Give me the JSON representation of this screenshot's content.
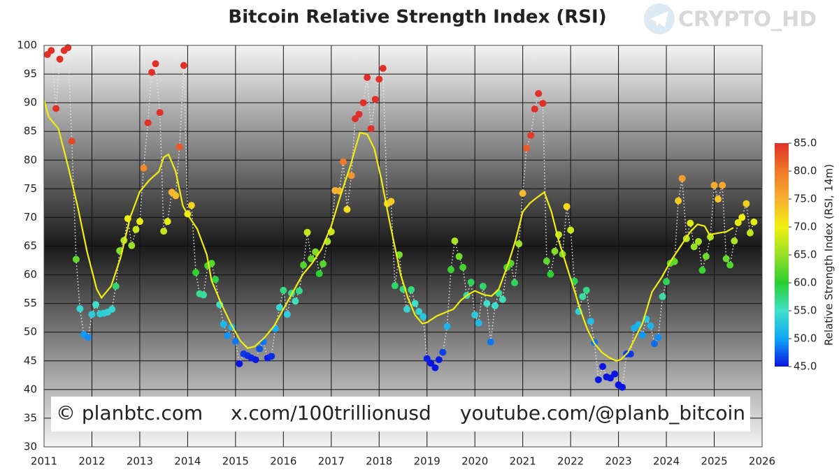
{
  "chart_data": {
    "type": "scatter",
    "title": "Bitcoin Relative Strength Index (RSI)",
    "watermark": "CRYPTO_HD",
    "footer": [
      "© planbtc.com",
      "x.com/100trillionusd",
      "youtube.com/@planb_bitcoin"
    ],
    "xlim": [
      2011,
      2026
    ],
    "xticks": [
      2011,
      2012,
      2013,
      2014,
      2015,
      2016,
      2017,
      2018,
      2019,
      2020,
      2021,
      2022,
      2023,
      2024,
      2025,
      2026
    ],
    "ylim": [
      30,
      100
    ],
    "yticks": [
      30,
      35,
      40,
      45,
      50,
      55,
      60,
      65,
      70,
      75,
      80,
      85,
      90,
      95,
      100
    ],
    "grid": true,
    "colorbar": {
      "label": "Relative Strength Index (RSI, 14m)",
      "lim": [
        45,
        85
      ],
      "ticks": [
        {
          "value": 45,
          "label": "45.0"
        },
        {
          "value": 50,
          "label": "50.0"
        },
        {
          "value": 55,
          "label": "55.0"
        },
        {
          "value": 60,
          "label": "60.0"
        },
        {
          "value": 65,
          "label": "65.0"
        },
        {
          "value": 70,
          "label": "70.0"
        },
        {
          "value": 75,
          "label": "75.0"
        },
        {
          "value": 80,
          "label": "80.0"
        },
        {
          "value": 85,
          "label": "85.0"
        }
      ],
      "colors": [
        "#0a14e0",
        "#10a8f8",
        "#40e0c8",
        "#28d030",
        "#98e028",
        "#f0f010",
        "#f8b030",
        "#f07828",
        "#e03028"
      ]
    },
    "series": [
      {
        "kind": "scatter",
        "connector_color": "#e8e8e8",
        "x": [
          2011.07,
          2011.15,
          2011.25,
          2011.33,
          2011.42,
          2011.5,
          2011.58,
          2011.67,
          2011.75,
          2011.83,
          2011.92,
          2012,
          2012.08,
          2012.17,
          2012.25,
          2012.33,
          2012.42,
          2012.5,
          2012.58,
          2012.67,
          2012.75,
          2012.83,
          2012.92,
          2013,
          2013.08,
          2013.17,
          2013.25,
          2013.33,
          2013.42,
          2013.5,
          2013.58,
          2013.67,
          2013.75,
          2013.83,
          2013.92,
          2014,
          2014.08,
          2014.17,
          2014.25,
          2014.33,
          2014.42,
          2014.5,
          2014.58,
          2014.67,
          2014.75,
          2014.83,
          2014.92,
          2015,
          2015.08,
          2015.17,
          2015.25,
          2015.33,
          2015.42,
          2015.5,
          2015.58,
          2015.67,
          2015.75,
          2015.83,
          2015.92,
          2016,
          2016.08,
          2016.17,
          2016.25,
          2016.33,
          2016.42,
          2016.5,
          2016.58,
          2016.67,
          2016.75,
          2016.83,
          2016.92,
          2017,
          2017.08,
          2017.17,
          2017.25,
          2017.33,
          2017.42,
          2017.5,
          2017.58,
          2017.67,
          2017.75,
          2017.83,
          2017.92,
          2018,
          2018.08,
          2018.17,
          2018.25,
          2018.33,
          2018.42,
          2018.5,
          2018.58,
          2018.67,
          2018.75,
          2018.83,
          2018.92,
          2019,
          2019.08,
          2019.17,
          2019.25,
          2019.33,
          2019.42,
          2019.5,
          2019.58,
          2019.67,
          2019.75,
          2019.83,
          2019.92,
          2020,
          2020.08,
          2020.17,
          2020.25,
          2020.33,
          2020.42,
          2020.5,
          2020.58,
          2020.67,
          2020.75,
          2020.83,
          2020.92,
          2021,
          2021.08,
          2021.17,
          2021.25,
          2021.33,
          2021.42,
          2021.5,
          2021.58,
          2021.67,
          2021.75,
          2021.83,
          2021.92,
          2022,
          2022.08,
          2022.17,
          2022.25,
          2022.33,
          2022.42,
          2022.5,
          2022.58,
          2022.67,
          2022.75,
          2022.83,
          2022.92,
          2023,
          2023.08,
          2023.17,
          2023.25,
          2023.33,
          2023.42,
          2023.5,
          2023.58,
          2023.67,
          2023.75,
          2023.83,
          2023.92,
          2024,
          2024.08,
          2024.17,
          2024.25,
          2024.33,
          2024.42,
          2024.5,
          2024.58,
          2024.67,
          2024.75,
          2024.83,
          2024.92,
          2025,
          2025.08,
          2025.17,
          2025.25,
          2025.33,
          2025.42,
          2025.5,
          2025.58,
          2025.67,
          2025.75,
          2025.83
        ],
        "values": [
          98.4,
          99.1,
          89.0,
          97.6,
          99.1,
          99.6,
          83.3,
          62.7,
          54.1,
          49.6,
          49.1,
          53.1,
          54.8,
          53.2,
          53.3,
          53.5,
          54.0,
          58.0,
          64.2,
          66.0,
          69.8,
          65.1,
          67.9,
          69.3,
          78.6,
          86.5,
          95.3,
          96.8,
          88.3,
          67.6,
          69.3,
          74.4,
          73.8,
          82.3,
          96.5,
          70.6,
          72.1,
          60.4,
          56.7,
          56.5,
          61.6,
          62.0,
          59.2,
          54.8,
          51.4,
          49.4,
          50.9,
          48.4,
          44.5,
          46.2,
          45.9,
          45.5,
          45.2,
          47.1,
          48.3,
          45.5,
          45.8,
          50.6,
          54.3,
          57.3,
          53.1,
          56.8,
          55.4,
          57.2,
          61.7,
          67.4,
          62.8,
          64.0,
          60.2,
          61.9,
          65.8,
          67.5,
          74.7,
          74.6,
          79.7,
          71.4,
          77.3,
          87.2,
          88.0,
          90.0,
          94.4,
          85.5,
          90.6,
          94.1,
          96.0,
          72.4,
          72.8,
          58.1,
          63.5,
          57.5,
          54.0,
          57.4,
          55.0,
          53.6,
          52.7,
          45.4,
          44.6,
          43.8,
          45.2,
          46.5,
          51.0,
          60.9,
          65.9,
          63.2,
          61.3,
          56.4,
          58.7,
          53.0,
          51.6,
          58.0,
          55.0,
          48.3,
          54.6,
          56.8,
          55.7,
          61.3,
          62.0,
          58.6,
          65.4,
          74.2,
          82.1,
          84.3,
          88.9,
          91.6,
          89.9,
          62.4,
          60.1,
          64.1,
          67.0,
          63.6,
          71.9,
          67.8,
          58.9,
          53.6,
          56.2,
          57.3,
          51.9,
          48.2,
          41.7,
          44.0,
          42.2,
          42.0,
          42.7,
          40.8,
          40.4,
          46.2,
          46.2,
          50.7,
          51.3,
          49.5,
          52.3,
          51.1,
          48.0,
          49.1,
          56.2,
          58.8,
          62.0,
          62.3,
          72.9,
          76.8,
          66.3,
          69.0,
          64.9,
          65.8,
          60.8,
          63.2,
          66.6,
          75.6,
          73.2,
          75.6,
          62.8,
          61.7,
          65.9,
          69.1,
          70.0,
          72.4,
          67.3,
          69.2
        ]
      },
      {
        "kind": "line",
        "color": "#f0ee10",
        "x": [
          2011,
          2011.1,
          2011.3,
          2011.5,
          2011.7,
          2011.9,
          2012.1,
          2012.2,
          2012.4,
          2012.6,
          2012.8,
          2013,
          2013.2,
          2013.4,
          2013.5,
          2013.6,
          2013.75,
          2013.9,
          2014,
          2014.2,
          2014.4,
          2014.5,
          2014.7,
          2014.9,
          2015.1,
          2015.25,
          2015.4,
          2015.6,
          2015.8,
          2016,
          2016.2,
          2016.4,
          2016.6,
          2016.8,
          2017,
          2017.2,
          2017.4,
          2017.5,
          2017.6,
          2017.75,
          2017.9,
          2018.05,
          2018.2,
          2018.3,
          2018.45,
          2018.6,
          2018.75,
          2018.9,
          2019,
          2019.2,
          2019.4,
          2019.55,
          2019.7,
          2019.85,
          2020,
          2020.2,
          2020.35,
          2020.5,
          2020.7,
          2020.85,
          2021,
          2021.15,
          2021.3,
          2021.45,
          2021.6,
          2021.75,
          2021.9,
          2022.05,
          2022.2,
          2022.35,
          2022.5,
          2022.65,
          2022.8,
          2022.95,
          2023.05,
          2023.2,
          2023.35,
          2023.5,
          2023.7,
          2023.9,
          2024.1,
          2024.3,
          2024.5,
          2024.65,
          2024.8,
          2024.9,
          2025.1,
          2025.25,
          2025.4
        ],
        "values": [
          90.5,
          87.5,
          85.5,
          79,
          72,
          64,
          57.5,
          56,
          58,
          63,
          70,
          74.5,
          76.5,
          78,
          80.5,
          81,
          78,
          72,
          70.5,
          68,
          63.5,
          59,
          55,
          51.5,
          48.5,
          47.2,
          47.5,
          49,
          51,
          54,
          57,
          60,
          62,
          64.5,
          68.5,
          74,
          79,
          82,
          84.8,
          84.5,
          82,
          76.5,
          70,
          66,
          60,
          56,
          53,
          51.5,
          51.7,
          52.8,
          53.5,
          54,
          55.5,
          56.5,
          57.2,
          56.5,
          56.3,
          57.5,
          62,
          66,
          71,
          72.5,
          73.5,
          74.4,
          71,
          66,
          62,
          58,
          54,
          50.5,
          48,
          46.5,
          45.6,
          45,
          45.2,
          46.5,
          49,
          51.5,
          57,
          59.5,
          62.5,
          65,
          67.5,
          68.8,
          68.5,
          67,
          67.3,
          67.5,
          68.2
        ]
      }
    ]
  }
}
